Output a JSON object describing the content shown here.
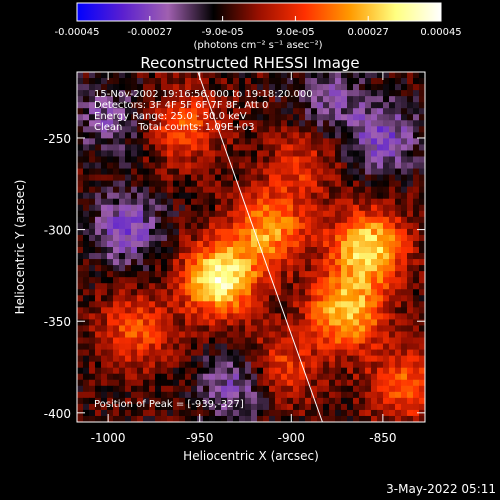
{
  "window": {
    "footer_timestamp": "3-May-2022 05:11"
  },
  "colorbar": {
    "tick_labels": [
      "-0.00045",
      "-0.00027",
      "-9.0e-05",
      "9.0e-05",
      "0.00027",
      "0.00045"
    ],
    "unit_label": "(photons cm⁻² s⁻¹ asec⁻²)",
    "range": [
      -0.00045,
      0.00045
    ],
    "colors": [
      "#0000ff",
      "#5a1fd0",
      "#a060b0",
      "#000000",
      "#9a1000",
      "#ff3000",
      "#ff9a00",
      "#ffff80",
      "#ffffff"
    ]
  },
  "annotations": {
    "line1": "15-Nov-2002 19:16:56.000 to 19:18:20.000",
    "line2": "Detectors: 3F 4F 5F 6F 7F 8F, Att 0",
    "line3": "Energy Range: 25.0 - 50.0 keV",
    "line4": "Clean     Total counts: 1.09E+03",
    "peak": "Position of Peak = [-939,-327]"
  },
  "chart_data": {
    "type": "heatmap",
    "title": "Reconstructed RHESSI Image",
    "xlabel": "Heliocentric X (arcsec)",
    "ylabel": "Heliocentric Y (arcsec)",
    "xlim": [
      -1017,
      -827
    ],
    "ylim": [
      -405,
      -214
    ],
    "x_ticks": [
      -1000,
      -950,
      -900,
      -850
    ],
    "y_ticks": [
      -400,
      -350,
      -300,
      -250
    ],
    "x_tick_labels": [
      "-1000",
      "-950",
      "-900",
      "-850"
    ],
    "y_tick_labels": [
      "-400",
      "-350",
      "-300",
      "-250"
    ],
    "peak_position": [
      -939,
      -327
    ],
    "grid": false,
    "limb_line": {
      "x": [
        -951,
        -883
      ],
      "y": [
        -214,
        -405
      ]
    },
    "sources": [
      {
        "x": -939,
        "y": -327,
        "intensity": 0.00045
      },
      {
        "x": -858,
        "y": -310,
        "intensity": 0.0004
      },
      {
        "x": -870,
        "y": -345,
        "intensity": 0.00036
      },
      {
        "x": -912,
        "y": -300,
        "intensity": 0.0003
      },
      {
        "x": -958,
        "y": -245,
        "intensity": 0.0002
      },
      {
        "x": -985,
        "y": -355,
        "intensity": 0.0002
      },
      {
        "x": -905,
        "y": -375,
        "intensity": 0.00018
      },
      {
        "x": -838,
        "y": -385,
        "intensity": 0.00022
      },
      {
        "x": -895,
        "y": -265,
        "intensity": 0.00015
      }
    ],
    "negative_regions": [
      {
        "x": -850,
        "y": -250,
        "intensity": -0.0002
      },
      {
        "x": -990,
        "y": -300,
        "intensity": -0.0002
      },
      {
        "x": -930,
        "y": -385,
        "intensity": -0.00018
      },
      {
        "x": -880,
        "y": -228,
        "intensity": -0.00014
      },
      {
        "x": -1000,
        "y": -240,
        "intensity": -0.00014
      }
    ],
    "colorbar_range": [
      -0.00045,
      0.00045
    ]
  }
}
